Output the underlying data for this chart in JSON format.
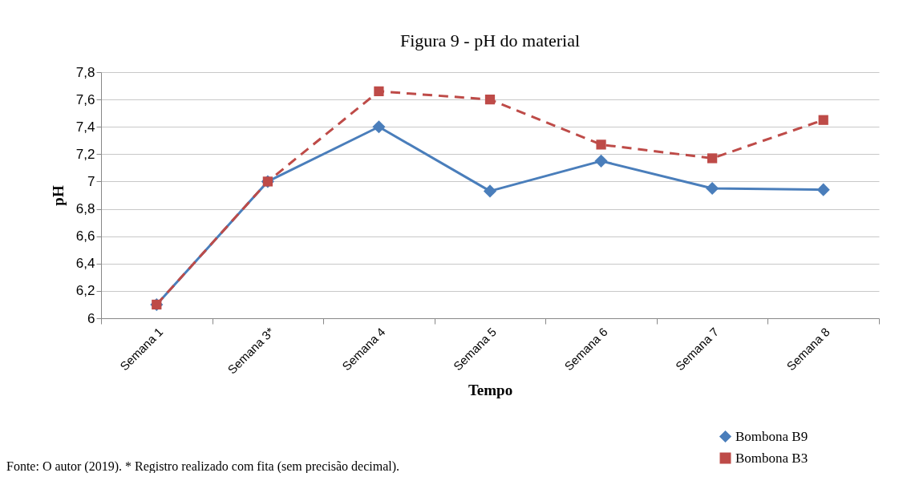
{
  "chart_data": {
    "type": "line",
    "title": "Figura 9 - pH do material",
    "xlabel": "Tempo",
    "ylabel": "pH",
    "categories": [
      "Semana 1",
      "Semana 3*",
      "Semana 4",
      "Semana 5",
      "Semana 6",
      "Semana 7",
      "Semana 8"
    ],
    "series": [
      {
        "name": "Bombona B9",
        "color": "#4a7ebb",
        "marker": "diamond",
        "line_style": "solid",
        "values": [
          6.1,
          7.0,
          7.4,
          6.93,
          7.15,
          6.95,
          6.94
        ]
      },
      {
        "name": "Bombona B3",
        "color": "#be4b48",
        "marker": "square",
        "line_style": "dashed",
        "values": [
          6.1,
          7.0,
          7.66,
          7.6,
          7.27,
          7.17,
          7.45
        ]
      }
    ],
    "ylim": [
      6,
      7.8
    ],
    "yticks": [
      6,
      {
        "value": 6.2,
        "label": "6,2"
      },
      {
        "value": 6.4,
        "label": "6,4"
      },
      {
        "value": 6.6,
        "label": "6,6"
      },
      {
        "value": 6.8,
        "label": "6,8"
      },
      7,
      {
        "value": 7.2,
        "label": "7,2"
      },
      {
        "value": 7.4,
        "label": "7,4"
      },
      {
        "value": 7.6,
        "label": "7,6"
      },
      {
        "value": 7.8,
        "label": "7,8"
      }
    ],
    "grid": "y",
    "legend": "bottom right",
    "annotations": [
      "Fonte: O autor (2019). * Registro realizado com fita (sem precisão decimal)."
    ]
  }
}
